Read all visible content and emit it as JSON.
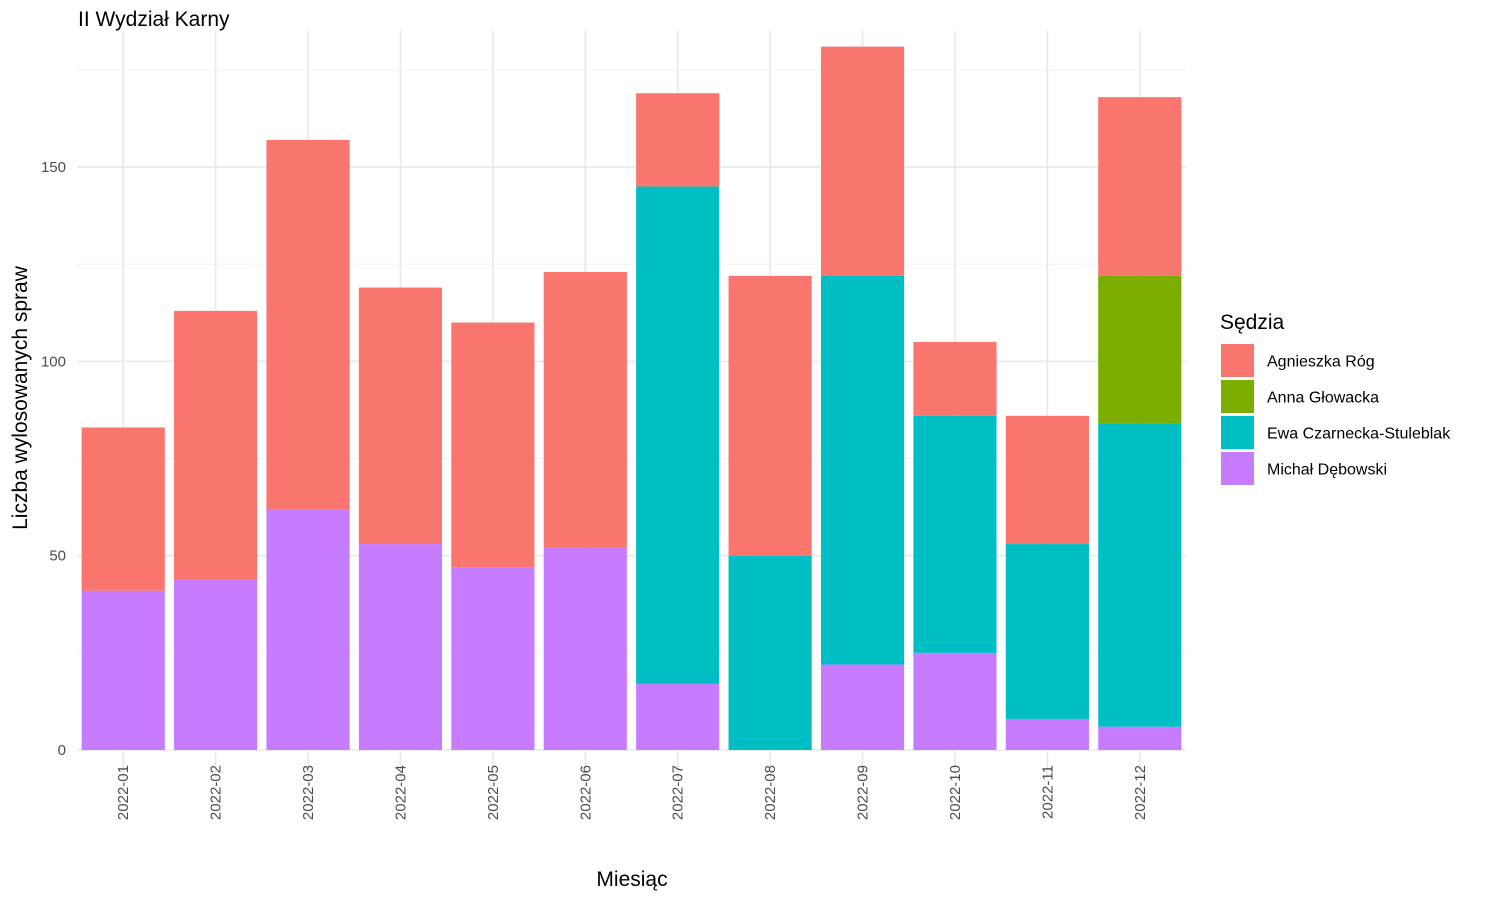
{
  "chart_data": {
    "type": "bar",
    "stacked": true,
    "title": "II Wydział Karny",
    "xlabel": "Miesiąc",
    "ylabel": "Liczba wylosowanych spraw",
    "categories": [
      "2022-01",
      "2022-02",
      "2022-03",
      "2022-04",
      "2022-05",
      "2022-06",
      "2022-07",
      "2022-08",
      "2022-09",
      "2022-10",
      "2022-11",
      "2022-12"
    ],
    "ylim": [
      0,
      185
    ],
    "yticks": [
      0,
      50,
      100,
      150
    ],
    "ytick_labels": [
      "0",
      "50",
      "100",
      "150"
    ],
    "grid": true,
    "legend_title": "Sędzia",
    "legend_position": "right",
    "stack_order": [
      "Michał Dębowski",
      "Ewa Czarnecka-Stuleblak",
      "Anna Głowacka",
      "Agnieszka Róg"
    ],
    "series": [
      {
        "name": "Agnieszka Róg",
        "color": "#F8766D",
        "values": [
          42,
          69,
          95,
          66,
          63,
          71,
          24,
          72,
          59,
          19,
          33,
          46
        ]
      },
      {
        "name": "Anna Głowacka",
        "color": "#7CAE00",
        "values": [
          0,
          0,
          0,
          0,
          0,
          0,
          0,
          0,
          0,
          0,
          0,
          38
        ]
      },
      {
        "name": "Ewa Czarnecka-Stuleblak",
        "color": "#00BFC4",
        "values": [
          0,
          0,
          0,
          0,
          0,
          0,
          128,
          50,
          100,
          61,
          45,
          78
        ]
      },
      {
        "name": "Michał Dębowski",
        "color": "#C77CFF",
        "values": [
          41,
          44,
          62,
          53,
          47,
          52,
          17,
          0,
          22,
          25,
          8,
          6
        ]
      }
    ]
  }
}
